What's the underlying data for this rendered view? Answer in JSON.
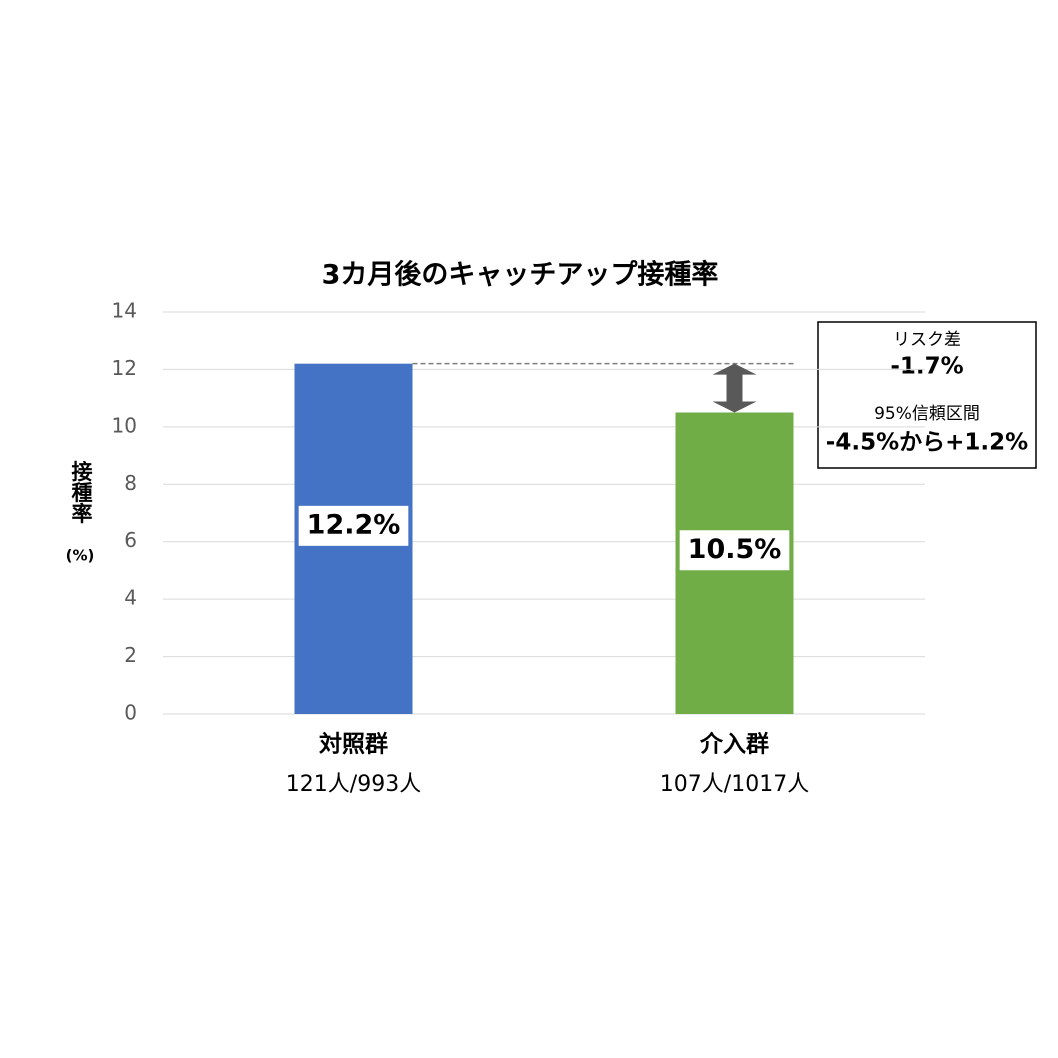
{
  "chart_data": {
    "type": "bar",
    "title": "3カ月後のキャッチアップ接種率",
    "ylabel": "接種率",
    "ylabel_unit": "(%)",
    "categories": [
      "対照群",
      "介入群"
    ],
    "category_sublabels": [
      "121人/993人",
      "107人/1017人"
    ],
    "values": [
      12.2,
      10.5
    ],
    "value_labels": [
      "12.2%",
      "10.5%"
    ],
    "colors": [
      "#4472c4",
      "#70ad47"
    ],
    "ylim": [
      0,
      14
    ],
    "yticks": [
      0,
      2,
      4,
      6,
      8,
      10,
      12,
      14
    ],
    "grid": true,
    "annotation": {
      "lines": [
        "リスク差",
        "-1.7%",
        "95%信頼区間",
        "-4.5%から+1.2%"
      ]
    }
  }
}
